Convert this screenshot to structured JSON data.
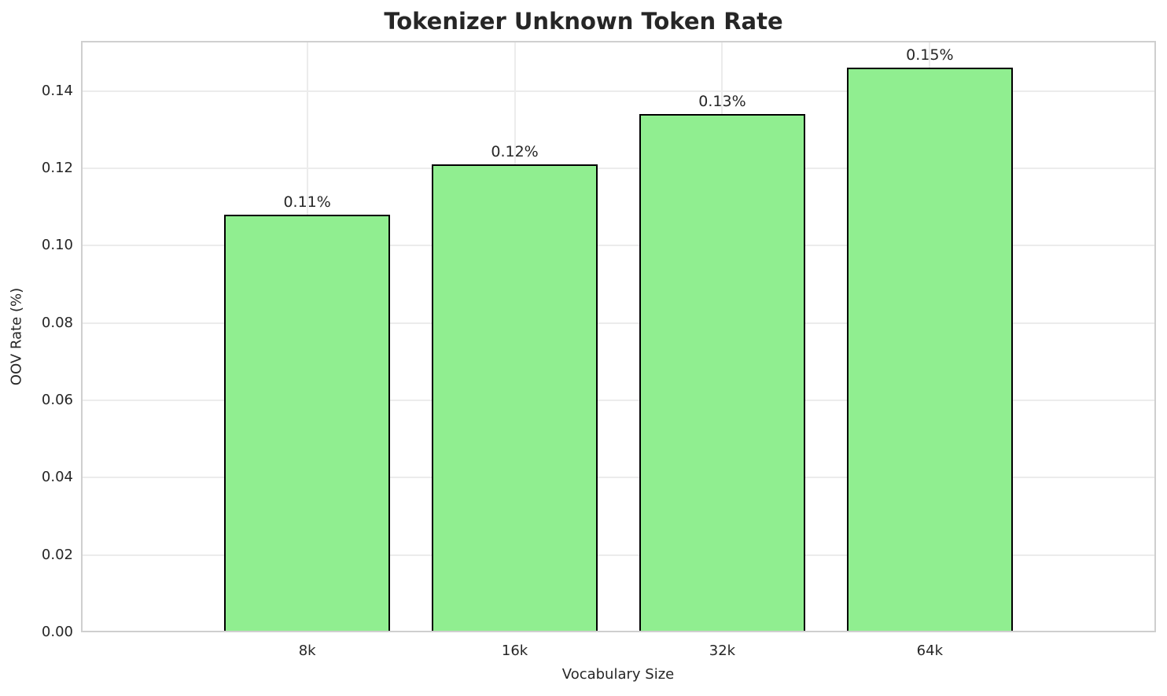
{
  "title": "Tokenizer Unknown Token Rate",
  "chart_data": {
    "type": "bar",
    "title": "Tokenizer Unknown Token Rate",
    "xlabel": "Vocabulary Size",
    "ylabel": "OOV Rate (%)",
    "categories": [
      "8k",
      "16k",
      "32k",
      "64k"
    ],
    "values": [
      0.108,
      0.121,
      0.134,
      0.146
    ],
    "bar_labels": [
      "0.11%",
      "0.12%",
      "0.13%",
      "0.15%"
    ],
    "yticks": [
      0,
      0.02,
      0.04,
      0.06,
      0.08,
      0.1,
      0.12,
      0.14
    ],
    "ytick_labels": [
      "0.00",
      "0.02",
      "0.04",
      "0.06",
      "0.08",
      "0.10",
      "0.12",
      "0.14"
    ],
    "ylim": [
      0,
      0.153
    ],
    "grid": true,
    "legend_position": "none",
    "bar_color": "#90EE90",
    "bar_edge_color": "#000000"
  },
  "colors": {
    "background": "#ffffff",
    "grid": "#ececec",
    "spine": "#cfcfcf",
    "text": "#262626"
  }
}
